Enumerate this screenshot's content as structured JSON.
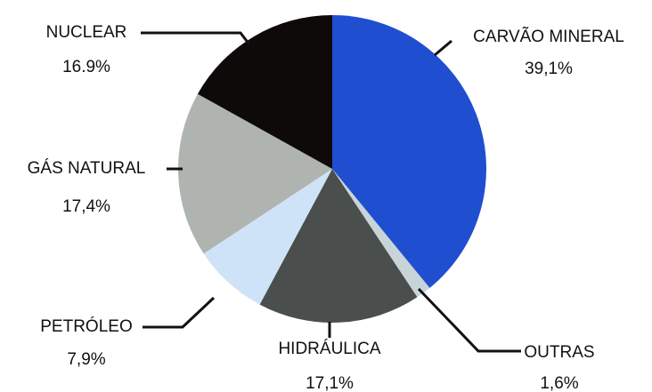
{
  "chart_data": {
    "type": "pie",
    "categories": [
      "CARVÃO MINERAL",
      "OUTRAS",
      "HIDRÁULICA",
      "PETRÓLEO",
      "GÁS NATURAL",
      "NUCLEAR"
    ],
    "values": [
      39.1,
      1.6,
      17.1,
      7.9,
      17.4,
      16.9
    ],
    "value_labels": [
      "39,1%",
      "1,6%",
      "17,1%",
      "7,9%",
      "17,4%",
      "16.9%"
    ],
    "colors": [
      "#1f4fd0",
      "#c8d4d8",
      "#4a4e4c",
      "#cfe3f8",
      "#b0b4b0",
      "#0e0a0a"
    ]
  }
}
